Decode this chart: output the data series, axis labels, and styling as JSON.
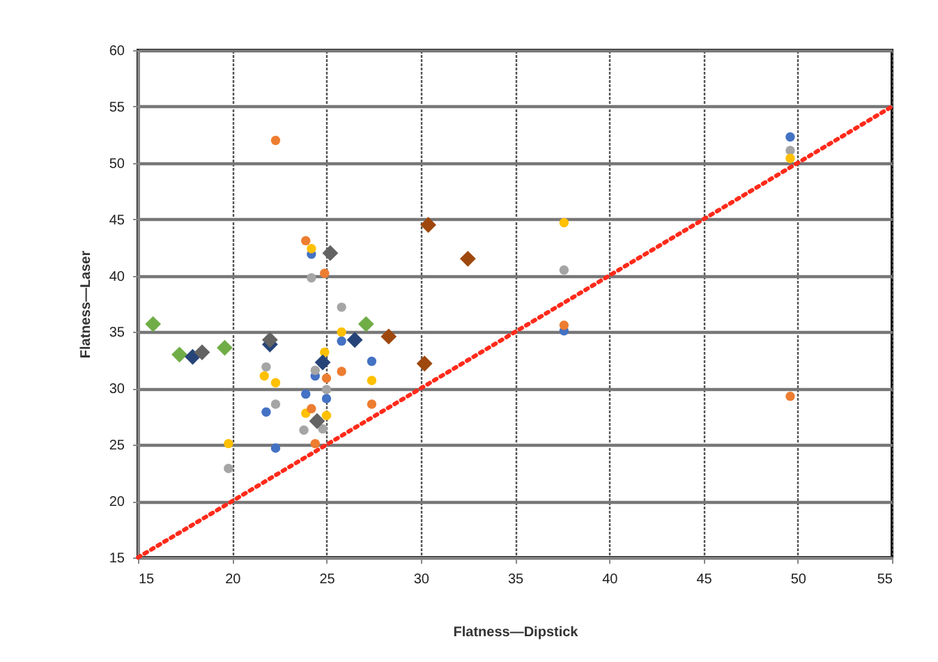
{
  "chart_data": {
    "type": "scatter",
    "xlabel": "Flatness—Dipstick",
    "ylabel": "Flatness—Laser",
    "xlim": [
      15,
      55
    ],
    "xticks": [
      15,
      20,
      25,
      30,
      35,
      40,
      45,
      50,
      55
    ],
    "ylim": [
      15,
      60
    ],
    "yticks": [
      15,
      20,
      25,
      30,
      35,
      40,
      45,
      50,
      55,
      60
    ],
    "grid": true,
    "series": [
      {
        "color": "#4472c4",
        "marker": "circle",
        "x": [
          24.2,
          25.8,
          27.4,
          24.4,
          23.9,
          25.0,
          21.8,
          22.3,
          37.6,
          49.6
        ],
        "values": [
          41.9,
          34.2,
          32.4,
          31.1,
          29.5,
          29.1,
          27.9,
          24.7,
          35.1,
          52.3
        ]
      },
      {
        "color": "#a5a5a5",
        "marker": "circle",
        "x": [
          24.2,
          25.8,
          21.8,
          22.3,
          23.8,
          19.8,
          25.0,
          24.4,
          24.8,
          37.6,
          49.6
        ],
        "values": [
          39.8,
          37.2,
          31.9,
          28.6,
          26.3,
          22.9,
          29.9,
          31.6,
          26.4,
          40.5,
          51.1
        ]
      },
      {
        "color": "#ffc000",
        "marker": "circle",
        "x": [
          24.2,
          25.8,
          24.9,
          21.7,
          22.3,
          27.4,
          23.9,
          25.0,
          19.8,
          37.6,
          49.6
        ],
        "values": [
          42.4,
          35.0,
          33.2,
          31.1,
          30.5,
          30.7,
          27.8,
          27.6,
          25.1,
          44.7,
          50.4
        ]
      },
      {
        "color": "#ed7d31",
        "marker": "circle",
        "x": [
          22.3,
          23.9,
          24.9,
          25.8,
          25.0,
          24.2,
          24.4,
          27.4,
          37.6,
          49.6
        ],
        "values": [
          52.0,
          43.1,
          40.2,
          31.5,
          30.9,
          28.2,
          25.1,
          28.6,
          35.6,
          29.3
        ]
      },
      {
        "color": "#70ad47",
        "marker": "diamond",
        "x": [
          15.8,
          17.2,
          19.6,
          27.1
        ],
        "values": [
          35.7,
          33.0,
          33.6,
          35.7
        ]
      },
      {
        "color": "#264478",
        "marker": "diamond",
        "x": [
          17.9,
          22.0,
          24.8,
          26.5
        ],
        "values": [
          32.8,
          33.9,
          32.3,
          34.3
        ]
      },
      {
        "color": "#636363",
        "marker": "diamond",
        "x": [
          18.4,
          22.0,
          25.2,
          24.5
        ],
        "values": [
          33.2,
          34.3,
          42.0,
          27.1
        ]
      },
      {
        "color": "#9e480e",
        "marker": "diamond",
        "x": [
          30.4,
          32.5,
          28.3,
          30.2
        ],
        "values": [
          44.5,
          41.5,
          34.6,
          32.2
        ]
      },
      {
        "type": "line",
        "color": "#ff2a1a",
        "line_style": "dotted",
        "marker": "none",
        "x": [
          15,
          55
        ],
        "values": [
          15,
          55
        ]
      }
    ]
  }
}
